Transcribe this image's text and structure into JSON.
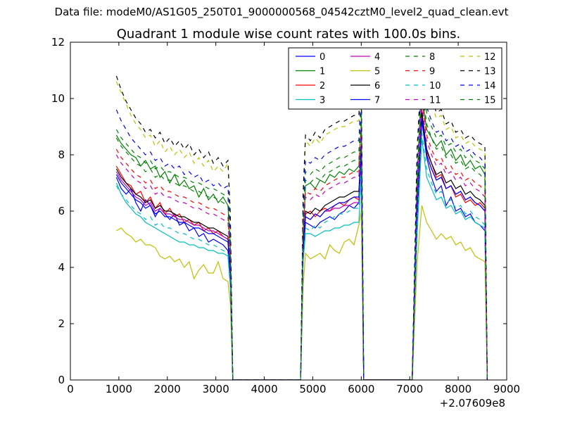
{
  "figure": {
    "suptitle": "Data file: modeM0/AS1G05_250T01_9000000568_04542cztM0_level2_quad_clean.evt"
  },
  "chart_data": {
    "type": "line",
    "title": "Quadrant 1 module wise count rates with 100.0s bins.",
    "xlabel": "",
    "ylabel": "",
    "xlim": [
      0,
      9000
    ],
    "ylim": [
      0,
      12
    ],
    "x_ticks": [
      "0",
      "1000",
      "2000",
      "3000",
      "4000",
      "5000",
      "6000",
      "7000",
      "8000",
      "9000"
    ],
    "y_ticks": [
      "0",
      "2",
      "4",
      "6",
      "8",
      "10",
      "12"
    ],
    "x_offset_label": "+2.07609e8",
    "grid": false,
    "legend_position": "top-right",
    "legend_columns": 4,
    "x": [
      950,
      1050,
      1150,
      1250,
      1350,
      1450,
      1550,
      1650,
      1750,
      1850,
      1950,
      2050,
      2150,
      2250,
      2350,
      2450,
      2550,
      2650,
      2750,
      2850,
      2950,
      3050,
      3150,
      3250,
      3300,
      3350,
      3450,
      4750,
      4800,
      4850,
      4950,
      5050,
      5150,
      5250,
      5350,
      5450,
      5550,
      5650,
      5750,
      5850,
      5950,
      6000,
      6050,
      6150,
      7050,
      7150,
      7250,
      7350,
      7450,
      7550,
      7650,
      7750,
      7850,
      7950,
      8050,
      8150,
      8250,
      8350,
      8450,
      8550,
      8600
    ],
    "series": [
      {
        "name": "0",
        "color": "#0000ff",
        "style": "solid",
        "values": [
          7.2,
          6.8,
          6.6,
          6.8,
          6.3,
          6.0,
          6.4,
          6.2,
          5.8,
          6.1,
          5.9,
          5.7,
          5.9,
          5.5,
          5.6,
          5.3,
          5.4,
          5.1,
          5.2,
          4.9,
          5.0,
          4.9,
          4.8,
          4.6,
          3.5,
          0.0,
          0.0,
          0.0,
          4.4,
          5.6,
          5.5,
          5.4,
          5.6,
          5.7,
          5.8,
          5.7,
          5.9,
          6.0,
          6.2,
          6.1,
          6.3,
          7.8,
          0.0,
          0.0,
          0.0,
          5.6,
          9.2,
          7.9,
          7.2,
          6.7,
          6.9,
          6.2,
          6.5,
          6.0,
          6.1,
          5.8,
          5.9,
          5.6,
          5.5,
          5.3,
          0.0
        ]
      },
      {
        "name": "1",
        "color": "#008000",
        "style": "solid",
        "values": [
          8.7,
          8.4,
          8.2,
          8.0,
          7.9,
          7.6,
          7.8,
          7.5,
          7.6,
          7.2,
          7.4,
          7.0,
          7.3,
          6.9,
          7.1,
          6.8,
          6.9,
          6.5,
          6.8,
          6.4,
          6.6,
          6.3,
          6.5,
          6.2,
          4.7,
          0.0,
          0.0,
          0.0,
          5.2,
          6.9,
          7.0,
          6.8,
          7.1,
          7.0,
          7.3,
          7.2,
          7.4,
          7.3,
          7.5,
          7.4,
          7.6,
          9.1,
          0.0,
          0.0,
          0.0,
          6.6,
          10.1,
          8.9,
          8.6,
          8.3,
          8.5,
          8.0,
          8.2,
          7.8,
          8.0,
          7.6,
          7.8,
          7.5,
          7.6,
          7.3,
          0.0
        ]
      },
      {
        "name": "2",
        "color": "#ff0000",
        "style": "solid",
        "values": [
          7.6,
          7.3,
          7.0,
          6.9,
          6.6,
          6.7,
          6.3,
          6.5,
          6.1,
          6.3,
          5.9,
          6.1,
          5.8,
          5.9,
          5.6,
          5.7,
          5.5,
          5.6,
          5.3,
          5.4,
          5.2,
          5.3,
          5.1,
          5.0,
          3.8,
          0.0,
          0.0,
          0.0,
          4.7,
          5.9,
          6.0,
          5.8,
          6.0,
          6.1,
          6.0,
          6.2,
          6.3,
          6.2,
          6.4,
          6.5,
          6.4,
          8.0,
          0.0,
          0.0,
          0.0,
          5.9,
          9.6,
          8.1,
          7.7,
          7.2,
          7.3,
          6.8,
          6.9,
          6.5,
          6.6,
          6.3,
          6.4,
          6.2,
          6.3,
          6.1,
          0.0
        ]
      },
      {
        "name": "3",
        "color": "#00bfbf",
        "style": "solid",
        "values": [
          7.0,
          6.6,
          6.3,
          6.1,
          5.9,
          5.8,
          5.6,
          5.5,
          5.4,
          5.3,
          5.2,
          5.1,
          5.0,
          4.9,
          4.9,
          4.8,
          4.8,
          4.7,
          4.7,
          4.6,
          4.6,
          4.5,
          4.5,
          4.4,
          3.3,
          0.0,
          0.0,
          0.0,
          4.2,
          5.2,
          5.2,
          5.1,
          5.2,
          5.3,
          5.3,
          5.4,
          5.4,
          5.5,
          5.5,
          5.6,
          5.6,
          7.2,
          0.0,
          0.0,
          0.0,
          5.1,
          8.6,
          7.2,
          6.8,
          6.4,
          6.5,
          6.1,
          6.2,
          5.9,
          6.0,
          5.7,
          5.8,
          5.6,
          5.5,
          5.4,
          0.0
        ]
      },
      {
        "name": "4",
        "color": "#bf00bf",
        "style": "solid",
        "values": [
          7.4,
          7.1,
          6.9,
          6.7,
          6.5,
          6.4,
          6.2,
          6.3,
          6.0,
          6.1,
          5.9,
          5.9,
          5.8,
          5.7,
          5.7,
          5.6,
          5.5,
          5.5,
          5.4,
          5.3,
          5.3,
          5.2,
          5.1,
          5.0,
          3.8,
          0.0,
          0.0,
          0.0,
          4.6,
          5.8,
          5.7,
          5.9,
          5.8,
          6.0,
          6.0,
          6.1,
          6.1,
          6.2,
          6.2,
          6.3,
          6.3,
          8.0,
          0.0,
          0.0,
          0.0,
          5.8,
          9.3,
          8.0,
          7.5,
          7.1,
          7.2,
          6.8,
          6.9,
          6.6,
          6.7,
          6.4,
          6.5,
          6.3,
          6.2,
          6.0,
          0.0
        ]
      },
      {
        "name": "5",
        "color": "#bfbf00",
        "style": "solid",
        "values": [
          5.3,
          5.4,
          5.2,
          5.1,
          4.9,
          5.0,
          4.8,
          4.8,
          4.7,
          4.4,
          4.3,
          4.4,
          4.2,
          4.3,
          4.0,
          4.2,
          3.6,
          3.9,
          4.1,
          3.8,
          3.8,
          4.2,
          3.6,
          3.5,
          2.7,
          0.0,
          0.0,
          0.0,
          3.3,
          4.5,
          4.3,
          4.4,
          4.5,
          4.3,
          4.8,
          4.6,
          4.5,
          4.9,
          5.0,
          4.8,
          5.5,
          6.0,
          0.0,
          0.0,
          0.0,
          4.1,
          6.2,
          5.6,
          5.3,
          5.0,
          5.2,
          5.0,
          5.1,
          4.8,
          4.9,
          4.6,
          4.7,
          4.4,
          4.3,
          4.2,
          0.0
        ]
      },
      {
        "name": "6",
        "color": "#000000",
        "style": "solid",
        "values": [
          7.5,
          7.2,
          7.0,
          6.8,
          6.6,
          6.5,
          6.3,
          6.4,
          6.1,
          6.2,
          6.0,
          6.0,
          5.9,
          5.8,
          5.8,
          5.7,
          5.6,
          5.6,
          5.5,
          5.4,
          5.4,
          5.3,
          5.2,
          5.1,
          3.9,
          0.0,
          0.0,
          0.0,
          4.7,
          6.0,
          5.9,
          6.1,
          6.0,
          6.2,
          6.3,
          6.4,
          6.5,
          6.5,
          6.6,
          6.7,
          6.7,
          8.3,
          0.0,
          0.0,
          0.0,
          6.0,
          9.5,
          8.2,
          7.7,
          7.3,
          7.4,
          7.0,
          7.1,
          6.8,
          6.9,
          6.6,
          6.7,
          6.5,
          6.4,
          6.2,
          0.0
        ]
      },
      {
        "name": "7",
        "color": "#0000ff",
        "style": "solid",
        "values": [
          7.3,
          7.0,
          6.8,
          6.6,
          6.4,
          6.3,
          6.1,
          6.2,
          5.9,
          6.0,
          5.8,
          5.8,
          5.7,
          5.6,
          5.6,
          5.5,
          5.4,
          5.4,
          5.3,
          5.2,
          5.2,
          5.1,
          5.0,
          4.9,
          3.7,
          0.0,
          0.0,
          0.0,
          4.5,
          5.8,
          5.7,
          5.9,
          5.8,
          6.0,
          6.1,
          6.2,
          6.3,
          6.3,
          6.4,
          6.5,
          6.5,
          8.1,
          0.0,
          0.0,
          0.0,
          5.8,
          9.3,
          8.0,
          7.5,
          7.1,
          7.2,
          6.8,
          6.9,
          6.6,
          6.7,
          6.4,
          6.5,
          6.3,
          6.2,
          6.0,
          0.0
        ]
      },
      {
        "name": "8",
        "color": "#008000",
        "style": "dashed",
        "values": [
          8.9,
          8.6,
          8.4,
          8.2,
          8.0,
          7.9,
          7.7,
          7.8,
          7.5,
          7.6,
          7.4,
          7.4,
          7.3,
          7.2,
          7.2,
          7.1,
          7.0,
          7.0,
          6.9,
          6.8,
          6.8,
          6.7,
          6.6,
          6.5,
          4.9,
          0.0,
          0.0,
          0.0,
          5.8,
          7.4,
          7.3,
          7.5,
          7.4,
          7.6,
          7.7,
          7.8,
          7.9,
          7.9,
          8.0,
          8.1,
          8.1,
          9.8,
          0.0,
          0.0,
          0.0,
          7.1,
          10.8,
          9.5,
          9.0,
          8.6,
          8.7,
          8.3,
          8.4,
          8.1,
          8.2,
          7.9,
          8.0,
          7.8,
          7.7,
          7.5,
          0.0
        ]
      },
      {
        "name": "9",
        "color": "#ff0000",
        "style": "dashed",
        "values": [
          8.2,
          7.9,
          7.7,
          7.5,
          7.3,
          7.2,
          7.0,
          7.1,
          6.8,
          6.9,
          6.7,
          6.7,
          6.6,
          6.5,
          6.5,
          6.4,
          6.3,
          6.3,
          6.2,
          6.1,
          6.1,
          6.0,
          5.9,
          5.8,
          4.4,
          0.0,
          0.0,
          0.0,
          5.3,
          6.7,
          6.6,
          6.8,
          6.7,
          6.9,
          7.0,
          7.1,
          7.2,
          7.2,
          7.3,
          7.4,
          7.4,
          9.0,
          0.0,
          0.0,
          0.0,
          6.5,
          10.0,
          8.7,
          8.2,
          7.8,
          7.9,
          7.5,
          7.6,
          7.3,
          7.4,
          7.1,
          7.2,
          7.0,
          6.9,
          6.7,
          0.0
        ]
      },
      {
        "name": "10",
        "color": "#00bfbf",
        "style": "dashed",
        "values": [
          6.9,
          6.6,
          6.4,
          6.2,
          6.0,
          5.9,
          5.7,
          5.8,
          5.5,
          5.6,
          5.4,
          5.4,
          5.3,
          5.2,
          5.2,
          5.1,
          5.0,
          5.0,
          4.9,
          4.8,
          4.8,
          4.7,
          4.6,
          4.5,
          3.4,
          0.0,
          0.0,
          0.0,
          4.2,
          5.4,
          5.3,
          5.5,
          5.4,
          5.6,
          5.7,
          5.8,
          5.9,
          5.9,
          6.0,
          6.1,
          6.1,
          7.6,
          0.0,
          0.0,
          0.0,
          5.4,
          8.8,
          7.5,
          7.0,
          6.6,
          6.7,
          6.3,
          6.4,
          6.1,
          6.2,
          5.9,
          6.0,
          5.8,
          5.7,
          5.5,
          0.0
        ]
      },
      {
        "name": "11",
        "color": "#bf00bf",
        "style": "dashed",
        "values": [
          8.0,
          7.7,
          7.5,
          7.3,
          7.1,
          7.0,
          6.8,
          6.9,
          6.6,
          6.7,
          6.5,
          6.5,
          6.4,
          6.3,
          6.3,
          6.2,
          6.1,
          6.1,
          6.0,
          5.9,
          5.9,
          5.8,
          5.7,
          5.6,
          4.2,
          0.0,
          0.0,
          0.0,
          5.1,
          6.5,
          6.4,
          6.6,
          6.5,
          6.7,
          6.8,
          6.9,
          7.0,
          7.0,
          7.1,
          7.2,
          7.2,
          8.8,
          0.0,
          0.0,
          0.0,
          6.3,
          9.8,
          8.5,
          8.0,
          7.6,
          7.7,
          7.3,
          7.4,
          7.1,
          7.2,
          6.9,
          7.0,
          6.8,
          6.7,
          6.5,
          0.0
        ]
      },
      {
        "name": "12",
        "color": "#bfbf00",
        "style": "dashed",
        "values": [
          10.6,
          10.2,
          9.8,
          9.4,
          9.1,
          8.9,
          8.6,
          8.7,
          8.3,
          8.5,
          8.1,
          8.3,
          8.0,
          8.2,
          7.9,
          8.1,
          7.7,
          7.9,
          7.6,
          7.8,
          7.4,
          7.6,
          7.4,
          7.7,
          5.8,
          0.0,
          0.0,
          0.0,
          6.5,
          8.5,
          8.3,
          8.6,
          8.4,
          8.7,
          8.8,
          8.9,
          9.0,
          9.0,
          9.1,
          9.2,
          9.2,
          11.0,
          0.0,
          0.0,
          0.0,
          8.0,
          11.2,
          10.2,
          9.8,
          9.3,
          9.4,
          8.9,
          9.0,
          8.6,
          8.7,
          8.4,
          8.5,
          8.3,
          8.2,
          8.1,
          0.0
        ]
      },
      {
        "name": "13",
        "color": "#000000",
        "style": "dashed",
        "values": [
          10.8,
          10.3,
          9.9,
          9.6,
          9.3,
          9.1,
          8.8,
          8.9,
          8.6,
          8.8,
          8.4,
          8.6,
          8.3,
          8.5,
          8.2,
          8.4,
          8.0,
          8.2,
          7.9,
          8.1,
          7.7,
          7.9,
          7.6,
          7.8,
          5.9,
          0.0,
          0.0,
          0.0,
          6.6,
          8.7,
          8.5,
          8.8,
          8.6,
          8.9,
          9.0,
          9.1,
          9.2,
          9.2,
          9.3,
          9.4,
          9.4,
          11.0,
          0.0,
          0.0,
          0.0,
          8.2,
          11.3,
          10.4,
          10.0,
          9.5,
          9.6,
          9.1,
          9.2,
          8.8,
          8.9,
          8.6,
          8.7,
          8.5,
          8.4,
          8.3,
          0.0
        ]
      },
      {
        "name": "14",
        "color": "#0000ff",
        "style": "dashed",
        "values": [
          9.6,
          9.2,
          8.9,
          8.6,
          8.4,
          8.2,
          8.0,
          8.1,
          7.8,
          7.9,
          7.6,
          7.7,
          7.5,
          7.6,
          7.3,
          7.4,
          7.2,
          7.3,
          7.0,
          7.1,
          6.9,
          7.0,
          6.8,
          6.9,
          5.2,
          0.0,
          0.0,
          0.0,
          6.0,
          7.8,
          7.7,
          7.9,
          7.8,
          8.0,
          8.1,
          8.2,
          8.3,
          8.3,
          8.4,
          8.5,
          8.5,
          10.2,
          0.0,
          0.0,
          0.0,
          7.4,
          10.9,
          9.7,
          9.2,
          8.8,
          8.9,
          8.5,
          8.6,
          8.3,
          8.4,
          8.1,
          8.2,
          8.0,
          7.9,
          7.7,
          0.0
        ]
      },
      {
        "name": "15",
        "color": "#008000",
        "style": "dashed",
        "values": [
          8.6,
          8.3,
          8.1,
          7.9,
          7.7,
          7.6,
          7.4,
          7.5,
          7.2,
          7.3,
          7.1,
          7.1,
          7.0,
          6.9,
          6.9,
          6.8,
          6.7,
          6.7,
          6.6,
          6.5,
          6.5,
          6.4,
          6.3,
          6.2,
          4.7,
          0.0,
          0.0,
          0.0,
          5.6,
          7.1,
          7.0,
          7.2,
          7.1,
          7.3,
          7.4,
          7.5,
          7.6,
          7.6,
          7.7,
          7.8,
          7.8,
          9.5,
          0.0,
          0.0,
          0.0,
          6.8,
          10.4,
          9.1,
          8.6,
          8.2,
          8.3,
          7.9,
          8.0,
          7.7,
          7.8,
          7.5,
          7.6,
          7.4,
          7.3,
          7.1,
          0.0
        ]
      }
    ]
  }
}
